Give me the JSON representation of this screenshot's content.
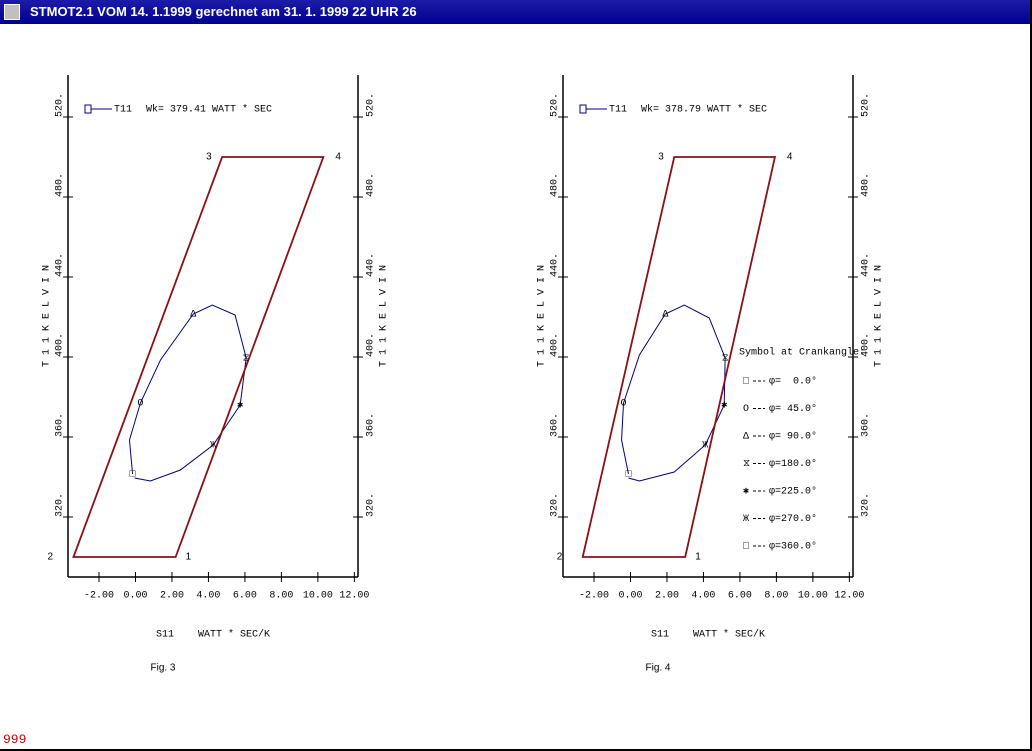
{
  "window": {
    "title": "STMOT2.1 VOM 14. 1.1999 gerechnet am 31. 1. 1999 22 UHR 26",
    "status": "999"
  },
  "chart_data": [
    {
      "type": "line",
      "caption": "Fig. 3",
      "x_label": "S11    WATT * SEC/K",
      "y_label": "T 1 1   K E L V I N",
      "xlim": [
        -3.7,
        12.2
      ],
      "ylim": [
        290,
        541
      ],
      "xticks": [
        {
          "value": -2,
          "label": "-2.00"
        },
        {
          "value": 0,
          "label": "0.00"
        },
        {
          "value": 2,
          "label": "2.00"
        },
        {
          "value": 4,
          "label": "4.00"
        },
        {
          "value": 6,
          "label": "6.00"
        },
        {
          "value": 8,
          "label": "8.00"
        },
        {
          "value": 10,
          "label": "10.00"
        },
        {
          "value": 12,
          "label": "12.00"
        }
      ],
      "yticks": [
        {
          "value": 320,
          "label": "320."
        },
        {
          "value": 360,
          "label": "360."
        },
        {
          "value": 400,
          "label": "400."
        },
        {
          "value": 440,
          "label": "440."
        },
        {
          "value": 480,
          "label": "480."
        },
        {
          "value": 520,
          "label": "520."
        }
      ],
      "series": [
        {
          "name": "T11",
          "annotation": "Wk= 379.41 WATT * SEC",
          "color": "#000080",
          "x": [
            -0.16,
            -0.33,
            0.27,
            1.37,
            3.17,
            4.21,
            5.46,
            6.07,
            5.74,
            4.26,
            2.46,
            0.82,
            -0.05
          ],
          "values": [
            341.5,
            358.5,
            377,
            398.5,
            421.5,
            426,
            421,
            399.5,
            376,
            356,
            343.5,
            338,
            339.5
          ]
        },
        {
          "color": "#8b1010",
          "x": [
            2.2,
            -3.4,
            4.75,
            10.3
          ],
          "values": [
            300,
            300,
            500,
            500
          ],
          "point_labels": [
            "1",
            "2",
            "3",
            "4"
          ]
        }
      ],
      "markers": {
        "x": [
          -0.16,
          0.27,
          3.17,
          6.07,
          5.74,
          4.26
        ],
        "values": [
          341.5,
          377,
          421.5,
          399.5,
          376,
          356
        ],
        "symbols": [
          "□",
          "O",
          "Δ",
          "⧖",
          "✱",
          "Ж"
        ]
      }
    },
    {
      "type": "line",
      "caption": "Fig. 4",
      "x_label": "S11    WATT * SEC/K",
      "y_label": "T 1 1   K E L V I N",
      "xlim": [
        -3.7,
        12.2
      ],
      "ylim": [
        290,
        541
      ],
      "xticks": [
        {
          "value": -2,
          "label": "-2.00"
        },
        {
          "value": 0,
          "label": "0.00"
        },
        {
          "value": 2,
          "label": "2.00"
        },
        {
          "value": 4,
          "label": "4.00"
        },
        {
          "value": 6,
          "label": "6.00"
        },
        {
          "value": 8,
          "label": "8.00"
        },
        {
          "value": 10,
          "label": "10.00"
        },
        {
          "value": 12,
          "label": "12.00"
        }
      ],
      "yticks": [
        {
          "value": 320,
          "label": "320."
        },
        {
          "value": 360,
          "label": "360."
        },
        {
          "value": 400,
          "label": "400."
        },
        {
          "value": 440,
          "label": "440."
        },
        {
          "value": 480,
          "label": "480."
        },
        {
          "value": 520,
          "label": "520."
        }
      ],
      "series": [
        {
          "name": "T11",
          "annotation": "Wk= 378.79 WATT * SEC",
          "color": "#000080",
          "x": [
            -0.11,
            -0.49,
            -0.38,
            0.49,
            1.91,
            2.95,
            4.32,
            5.19,
            5.14,
            4.1,
            2.4,
            0.49,
            -0.11
          ],
          "values": [
            341.5,
            358.5,
            377,
            401,
            421.5,
            426,
            419.5,
            399.5,
            376,
            356,
            342.5,
            338,
            339.5
          ]
        },
        {
          "color": "#8b1010",
          "x": [
            3.0,
            -2.62,
            2.4,
            7.92
          ],
          "values": [
            300,
            300,
            500,
            500
          ],
          "point_labels": [
            "1",
            "2",
            "3",
            "4"
          ]
        }
      ],
      "markers": {
        "x": [
          -0.11,
          -0.38,
          1.91,
          5.19,
          5.14,
          4.1
        ],
        "values": [
          341.5,
          377,
          421.5,
          399.5,
          376,
          356
        ],
        "symbols": [
          "□",
          "O",
          "Δ",
          "⧖",
          "✱",
          "Ж"
        ]
      },
      "crank_legend": {
        "title": "Symbol at Crankangle:",
        "symbols": [
          "□",
          "O",
          "Δ",
          "⧖",
          "✱",
          "Ж",
          "□"
        ],
        "labels": [
          "φ=  0.0°",
          "φ= 45.0°",
          "φ= 90.0°",
          "φ=180.0°",
          "φ=225.0°",
          "φ=270.0°",
          "φ=360.0°"
        ]
      }
    }
  ]
}
